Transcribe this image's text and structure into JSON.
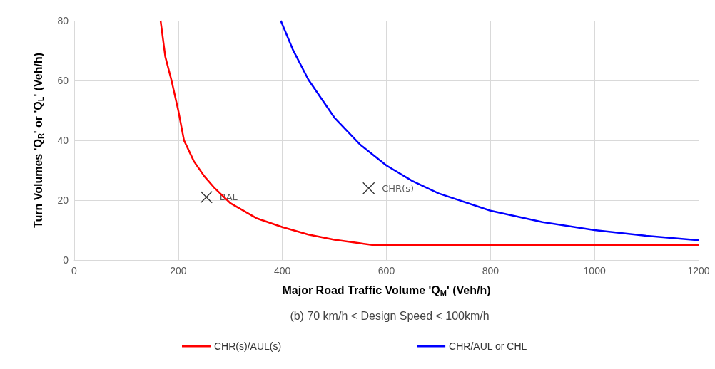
{
  "chart_data": {
    "type": "line",
    "subtitle": "(b) 70 km/h < Design Speed < 100km/h",
    "xlabel": "Major Road Traffic Volume 'Q$_{M}$' (Veh/h)",
    "ylabel": "Turn Volumes 'Q$_{R}$' or 'Q$_{L}$' (Veh/h)",
    "series": [
      {
        "name": "CHR(s)/AUL(s)",
        "color": "#ff0000",
        "x": [
          166,
          175,
          187,
          200,
          211,
          230,
          250,
          270,
          300,
          350,
          400,
          450,
          500,
          550,
          575,
          1200
        ],
        "values": [
          80,
          68,
          60,
          50,
          40,
          33,
          28,
          24,
          19,
          14,
          11,
          8.5,
          6.8,
          5.6,
          5,
          5
        ]
      },
      {
        "name": "CHR/AUL or CHL",
        "color": "#0000ff",
        "x": [
          397,
          420,
          450,
          500,
          550,
          600,
          650,
          700,
          800,
          900,
          1000,
          1100,
          1200
        ],
        "values": [
          80,
          70.4,
          60.3,
          47.6,
          38.5,
          31.6,
          26.4,
          22.3,
          16.5,
          12.7,
          10,
          8.1,
          6.6
        ]
      }
    ],
    "annotations": [
      {
        "text": "BAL",
        "x": 254,
        "y": 21
      },
      {
        "text": "CHR(s)",
        "x": 566,
        "y": 24
      }
    ],
    "xlim": [
      0,
      1200
    ],
    "xticks": [
      0,
      200,
      400,
      600,
      800,
      1000,
      1200
    ],
    "ylim": [
      0,
      80
    ],
    "yticks": [
      0,
      20,
      40,
      60,
      80
    ],
    "grid": true,
    "legend": "bottom",
    "marker": "none",
    "line_style": "solid"
  }
}
